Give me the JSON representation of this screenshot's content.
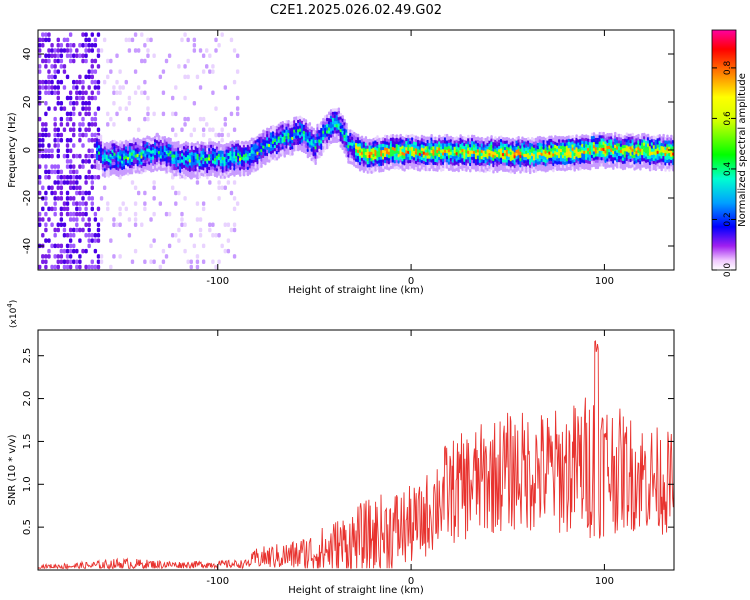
{
  "title": "C2E1.2025.026.02.49.G02",
  "chart_data": [
    {
      "type": "heatmap",
      "xlabel": "Height of straight line (km)",
      "ylabel": "Frequency (Hz)",
      "xlim": [
        -193,
        136
      ],
      "ylim": [
        -50,
        50
      ],
      "x_ticks": [
        -100,
        0,
        100
      ],
      "y_ticks": [
        -40,
        -20,
        0,
        20,
        40
      ],
      "colorbar": {
        "label": "Normalized spectral amplitude",
        "range": [
          0,
          0.95
        ],
        "ticks": [
          0.0,
          0.2,
          0.4,
          0.6,
          0.8
        ]
      },
      "signal_center_hz": [
        {
          "x": -160,
          "y": -3
        },
        {
          "x": -140,
          "y": -1
        },
        {
          "x": -130,
          "y": 0
        },
        {
          "x": -120,
          "y": -3
        },
        {
          "x": -100,
          "y": -3
        },
        {
          "x": -85,
          "y": -2
        },
        {
          "x": -75,
          "y": 3
        },
        {
          "x": -65,
          "y": 6
        },
        {
          "x": -58,
          "y": 8
        },
        {
          "x": -50,
          "y": 3
        },
        {
          "x": -45,
          "y": 9
        },
        {
          "x": -38,
          "y": 12
        },
        {
          "x": -33,
          "y": 3
        },
        {
          "x": -25,
          "y": -1
        },
        {
          "x": -10,
          "y": 0
        },
        {
          "x": 20,
          "y": 0
        },
        {
          "x": 60,
          "y": -1
        },
        {
          "x": 100,
          "y": 1
        },
        {
          "x": 136,
          "y": 0
        }
      ]
    },
    {
      "type": "line",
      "xlabel": "Height of straight line (km)",
      "ylabel": "SNR (10 * v/v)",
      "y_exponent": "(x10",
      "y_exponent_power": "4",
      "y_exponent_close": ")",
      "xlim": [
        -193,
        136
      ],
      "ylim": [
        0,
        2.8
      ],
      "x_ticks": [
        -100,
        0,
        100
      ],
      "y_ticks": [
        0.5,
        1.0,
        1.5,
        2.0,
        2.5
      ],
      "series": [
        {
          "color": "#e8322e",
          "envelope": [
            {
              "x": -193,
              "base": 0.04,
              "amp": 0.02
            },
            {
              "x": -165,
              "base": 0.05,
              "amp": 0.05
            },
            {
              "x": -150,
              "base": 0.07,
              "amp": 0.07
            },
            {
              "x": -120,
              "base": 0.06,
              "amp": 0.04
            },
            {
              "x": -85,
              "base": 0.07,
              "amp": 0.05
            },
            {
              "x": -80,
              "base": 0.14,
              "amp": 0.12
            },
            {
              "x": -60,
              "base": 0.17,
              "amp": 0.18
            },
            {
              "x": -45,
              "base": 0.22,
              "amp": 0.3
            },
            {
              "x": -25,
              "base": 0.35,
              "amp": 0.45
            },
            {
              "x": -10,
              "base": 0.45,
              "amp": 0.5
            },
            {
              "x": 5,
              "base": 0.55,
              "amp": 0.45
            },
            {
              "x": 15,
              "base": 0.85,
              "amp": 0.6
            },
            {
              "x": 30,
              "base": 1.0,
              "amp": 0.65
            },
            {
              "x": 50,
              "base": 1.15,
              "amp": 0.7
            },
            {
              "x": 80,
              "base": 1.15,
              "amp": 0.75
            },
            {
              "x": 95,
              "base": 1.25,
              "amp": 0.9
            },
            {
              "x": 110,
              "base": 1.15,
              "amp": 0.7
            },
            {
              "x": 136,
              "base": 1.0,
              "amp": 0.6
            }
          ],
          "peak": {
            "x": 96,
            "y": 2.78
          }
        }
      ]
    }
  ]
}
